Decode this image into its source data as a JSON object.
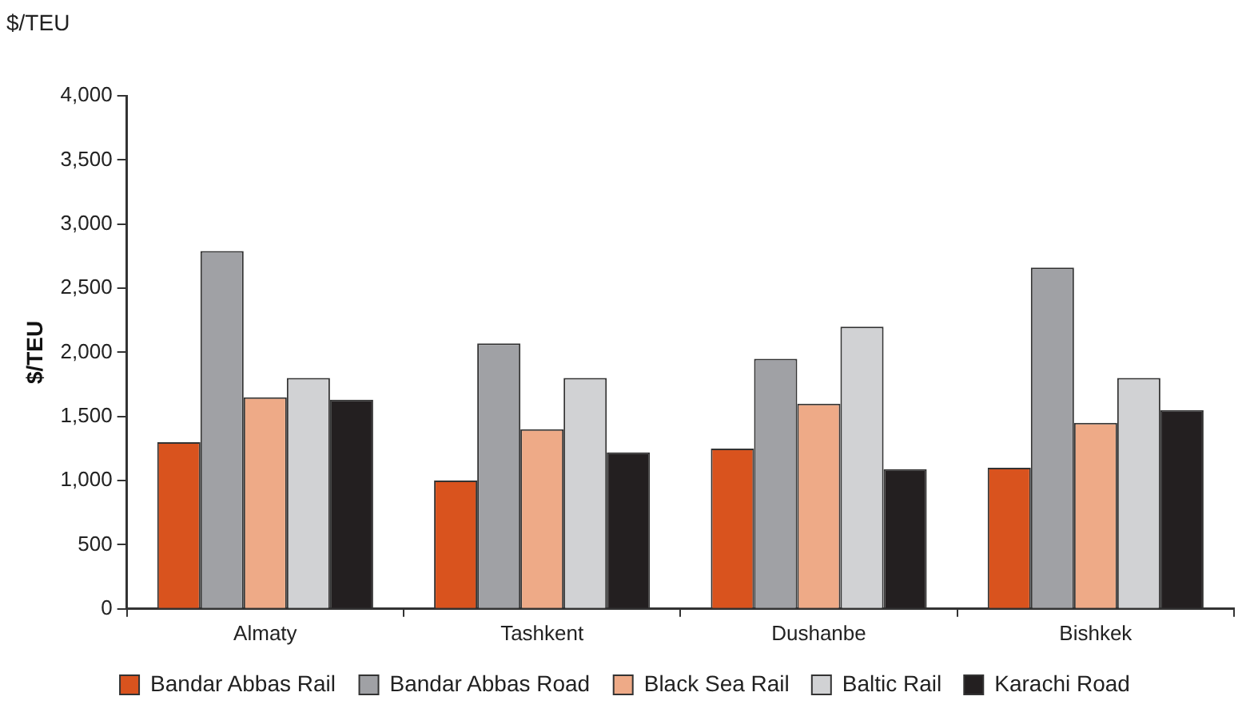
{
  "chart_data": {
    "type": "bar",
    "subtitle": "$/TEU",
    "ylabel": "$/TEU",
    "categories": [
      "Almaty",
      "Tashkent",
      "Dushanbe",
      "Bishkek"
    ],
    "series": [
      {
        "name": "Bandar Abbas Rail",
        "color": "#d9531e",
        "values": [
          1300,
          1000,
          1250,
          1100
        ]
      },
      {
        "name": "Bandar Abbas Road",
        "color": "#a0a1a5",
        "values": [
          2790,
          2070,
          1950,
          2660
        ]
      },
      {
        "name": "Black Sea Rail",
        "color": "#eeaa87",
        "values": [
          1650,
          1400,
          1600,
          1450
        ]
      },
      {
        "name": "Baltic Rail",
        "color": "#d1d2d4",
        "values": [
          1800,
          1800,
          2200,
          1800
        ]
      },
      {
        "name": "Karachi Road",
        "color": "#231f20",
        "values": [
          1630,
          1220,
          1090,
          1550
        ]
      }
    ],
    "ylim": [
      0,
      4000
    ],
    "yticks": [
      {
        "value": 0,
        "label": "0"
      },
      {
        "value": 500,
        "label": "500"
      },
      {
        "value": 1000,
        "label": "1,000"
      },
      {
        "value": 1500,
        "label": "1,500"
      },
      {
        "value": 2000,
        "label": "2,000"
      },
      {
        "value": 2500,
        "label": "2,500"
      },
      {
        "value": 3000,
        "label": "3,000"
      },
      {
        "value": 3500,
        "label": "3,500"
      },
      {
        "value": 4000,
        "label": "4,000"
      }
    ],
    "grid": false,
    "legend": "bottom"
  }
}
